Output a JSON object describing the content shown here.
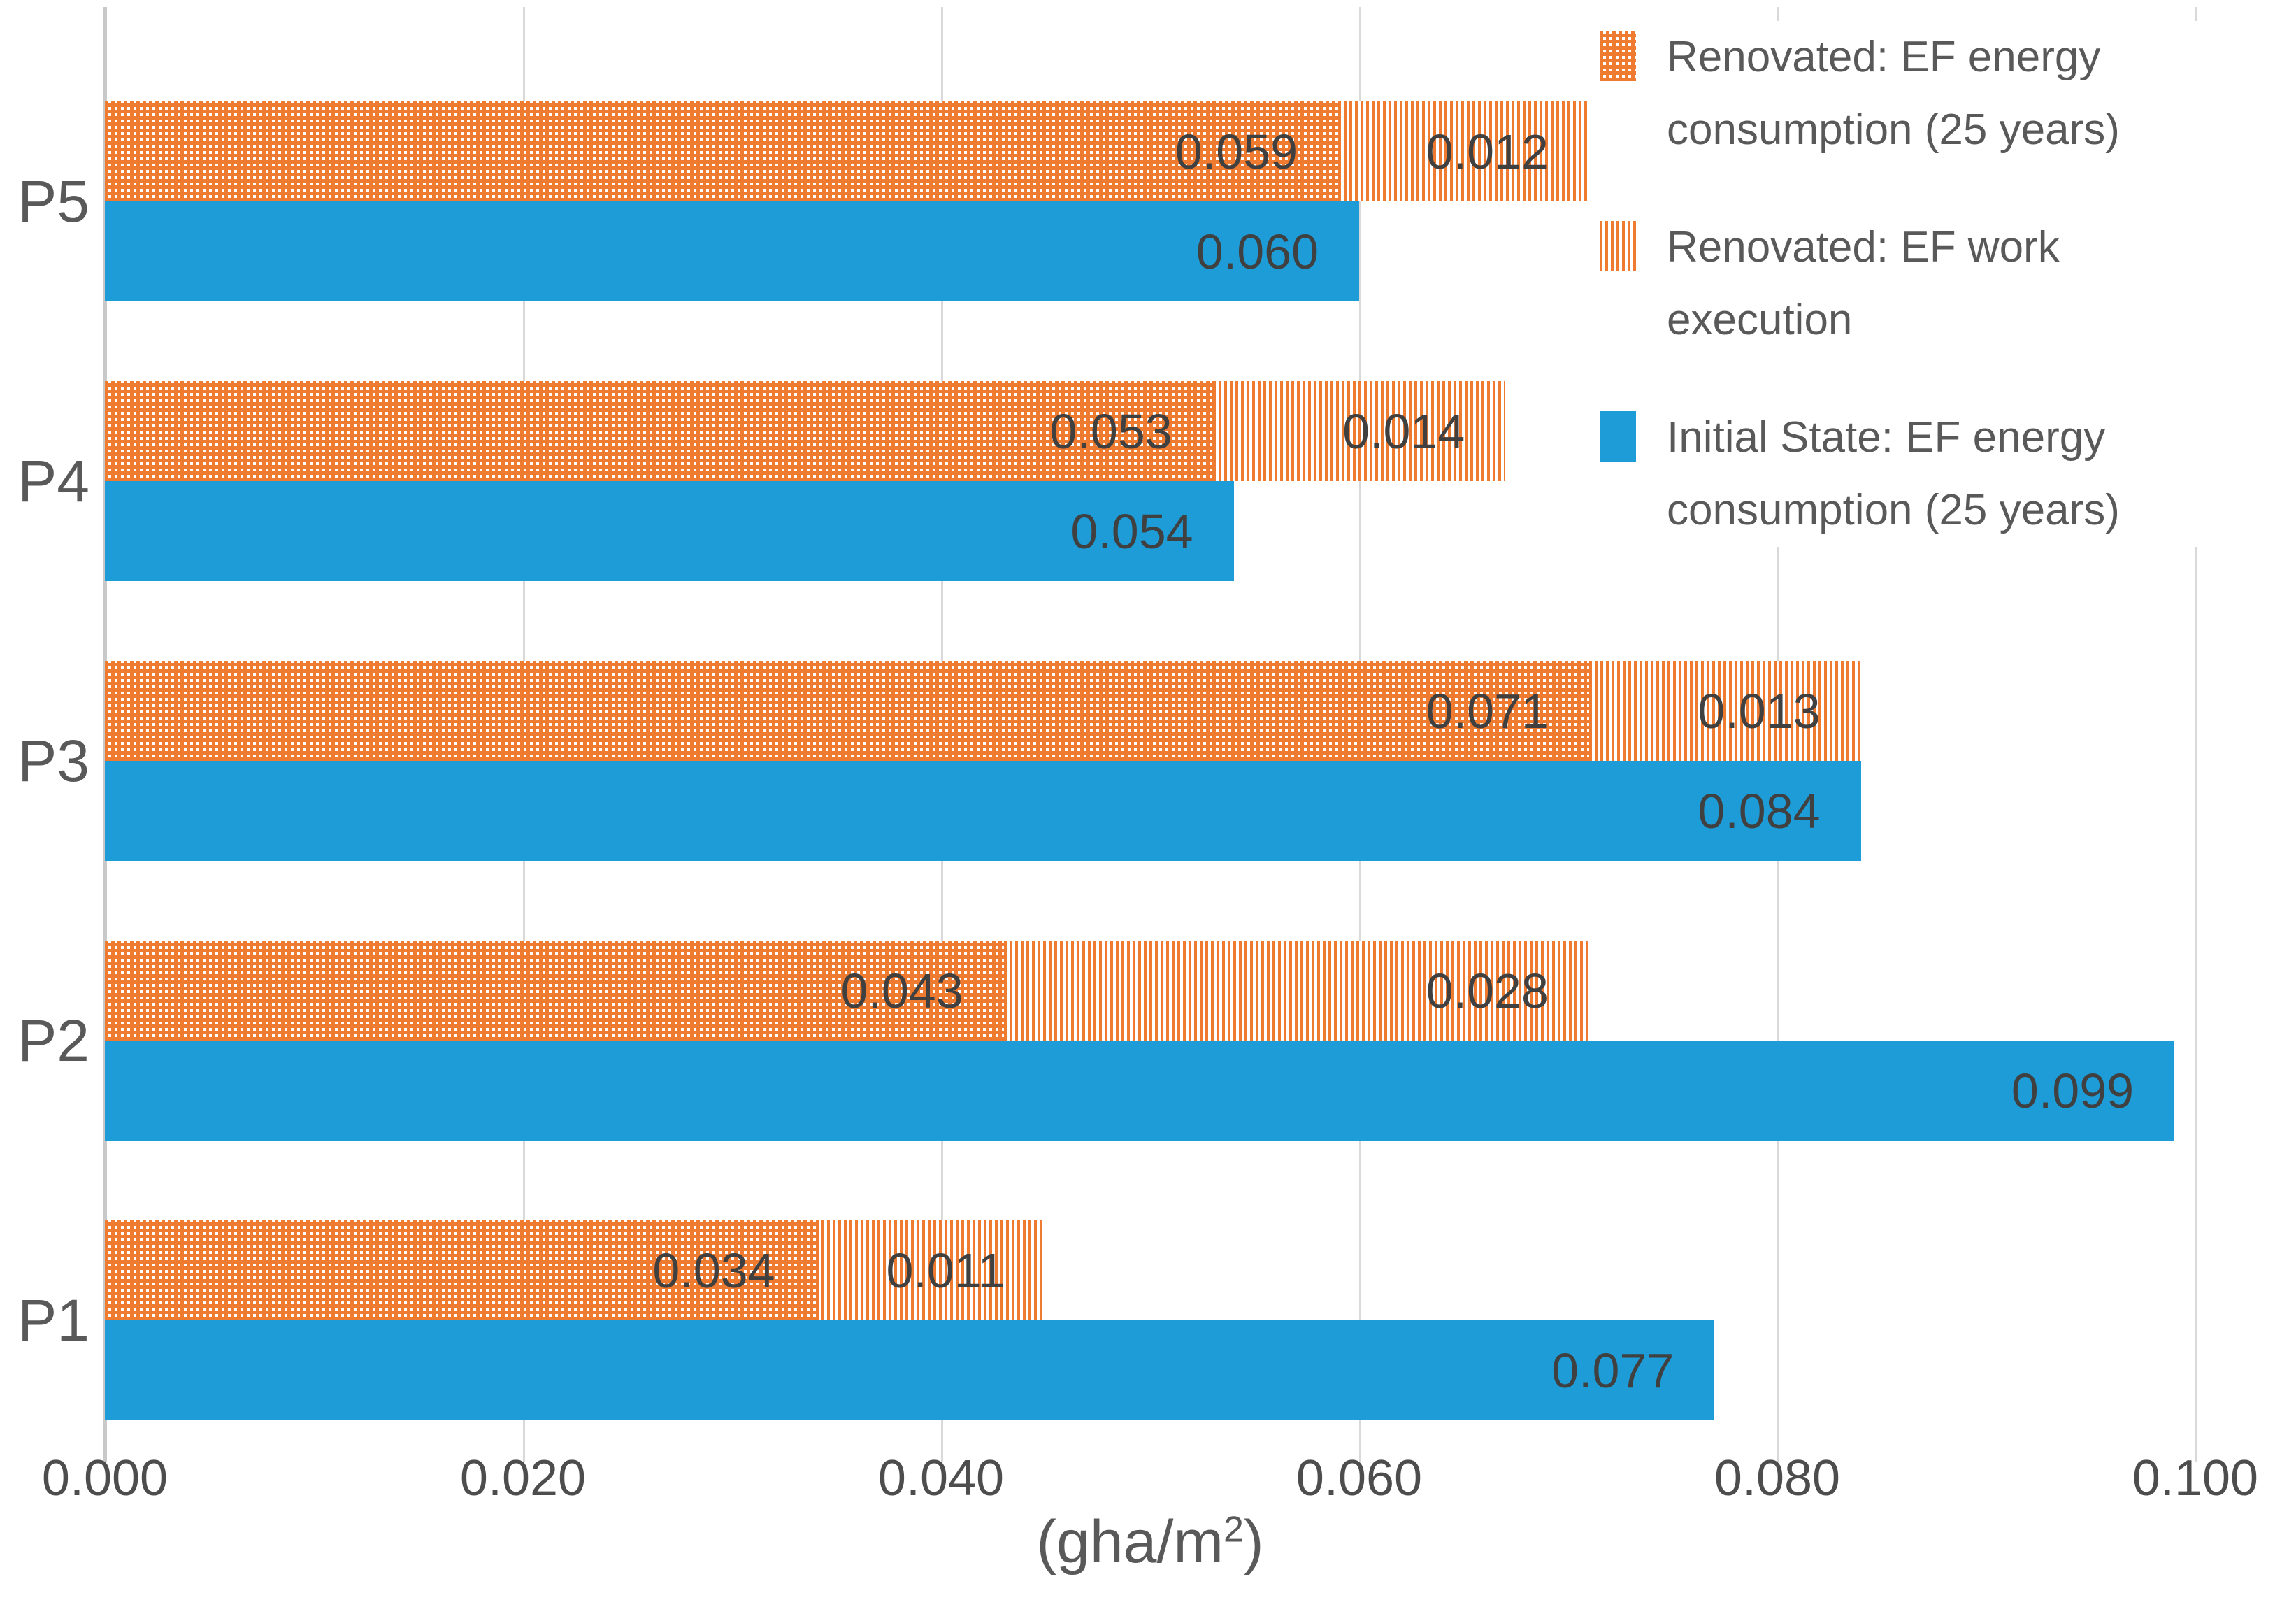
{
  "chart_data": {
    "type": "bar",
    "orientation": "horizontal",
    "title": "",
    "xlabel_prefix": "(gha/m",
    "xlabel_sup": "2",
    "xlabel_suffix": ")",
    "xlim": [
      0,
      0.1
    ],
    "x_ticks": [
      "0.000",
      "0.020",
      "0.040",
      "0.060",
      "0.080",
      "0.100"
    ],
    "grid": true,
    "value_label_decimals": 3,
    "categories": [
      "P5",
      "P4",
      "P3",
      "P2",
      "P1"
    ],
    "series": [
      {
        "name": "Renovated: EF energy consumption (25 years)",
        "swatch": "orange-dots",
        "stack": "renovated",
        "values": [
          0.059,
          0.053,
          0.071,
          0.043,
          0.034
        ]
      },
      {
        "name": "Renovated: EF work execution",
        "swatch": "orange-stripes",
        "stack": "renovated",
        "values": [
          0.012,
          0.014,
          0.013,
          0.028,
          0.011
        ]
      },
      {
        "name": "Initial State: EF energy consumption (25 years)",
        "swatch": "solid-blue",
        "stack": "initial",
        "values": [
          0.06,
          0.054,
          0.084,
          0.099,
          0.077
        ]
      }
    ],
    "legend_position": "right"
  },
  "legend": {
    "items": [
      {
        "swatch": "orange-dots",
        "label": "Renovated: EF energy consumption (25 years)",
        "lines": [
          "Renovated: EF energy",
          "consumption (25 years)"
        ]
      },
      {
        "swatch": "orange-stripes",
        "label": "Renovated: EF work execution",
        "lines": [
          "Renovated: EF work",
          "execution"
        ]
      },
      {
        "swatch": "solid-blue",
        "label": "Initial State: EF energy consumption (25 years)",
        "lines": [
          "Initial State: EF energy",
          "consumption (25 years)"
        ]
      }
    ]
  },
  "colors": {
    "orange": "#ee7b2f",
    "blue": "#1e9cd7",
    "gridline": "#d9d9d9",
    "axis_line": "#c9c9c9",
    "bar_label_text": "#404040",
    "axis_text": "#595959"
  }
}
